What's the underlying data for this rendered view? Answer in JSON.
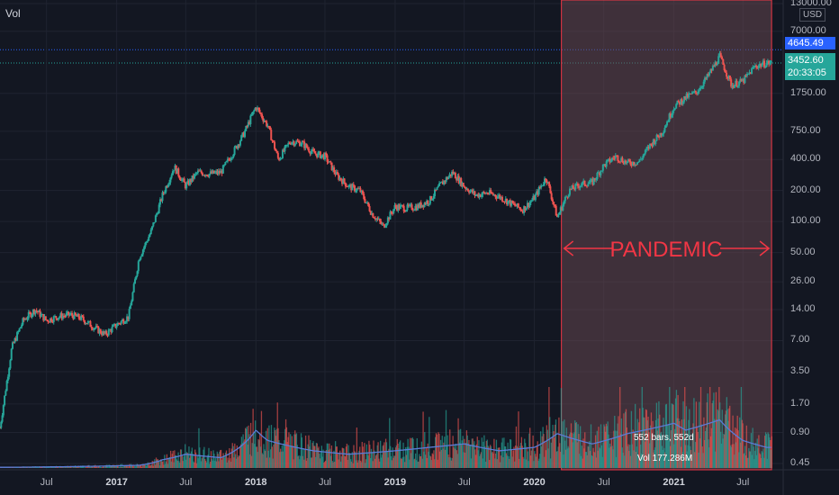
{
  "header": {
    "indicator_label": "Vol",
    "currency": "USD"
  },
  "price_tags": {
    "high_level": "4645.49",
    "last_price": "3452.60",
    "countdown": "20:33:05"
  },
  "annotation": {
    "text": "PANDEMIC",
    "bars_label": "552 bars, 552d",
    "volume_label": "Vol 177.286M"
  },
  "colors": {
    "up": "#26a69a",
    "down": "#ef5350",
    "volume_ma": "#5b7bd6",
    "highlight_border": "#f23645",
    "highlight_fill": "#6b4a52"
  },
  "chart_data": {
    "type": "candlestick",
    "scale": "log",
    "y_ticks": [
      "13000.00",
      "7000.00",
      "4645.49",
      "3452.60",
      "1750.00",
      "750.00",
      "400.00",
      "200.00",
      "100.00",
      "50.00",
      "26.00",
      "14.00",
      "7.00",
      "3.50",
      "1.70",
      "0.90",
      "0.45"
    ],
    "x_ticks": [
      {
        "label": "Jul",
        "year": false
      },
      {
        "label": "2017",
        "year": true
      },
      {
        "label": "Jul",
        "year": false
      },
      {
        "label": "2018",
        "year": true
      },
      {
        "label": "Jul",
        "year": false
      },
      {
        "label": "2019",
        "year": true
      },
      {
        "label": "Jul",
        "year": false
      },
      {
        "label": "2020",
        "year": true
      },
      {
        "label": "Jul",
        "year": false
      },
      {
        "label": "2021",
        "year": true
      },
      {
        "label": "Jul",
        "year": false
      }
    ],
    "price_path": [
      [
        "2016-03-01",
        1.0
      ],
      [
        "2016-04-01",
        6
      ],
      [
        "2016-05-01",
        11
      ],
      [
        "2016-06-01",
        14
      ],
      [
        "2016-07-01",
        11
      ],
      [
        "2016-08-01",
        12
      ],
      [
        "2016-09-01",
        12.5
      ],
      [
        "2016-10-01",
        11.5
      ],
      [
        "2016-11-01",
        9.5
      ],
      [
        "2016-12-01",
        8
      ],
      [
        "2017-01-01",
        10
      ],
      [
        "2017-02-01",
        12
      ],
      [
        "2017-03-01",
        45
      ],
      [
        "2017-04-01",
        80
      ],
      [
        "2017-05-01",
        180
      ],
      [
        "2017-06-01",
        340
      ],
      [
        "2017-07-01",
        220
      ],
      [
        "2017-08-01",
        300
      ],
      [
        "2017-09-01",
        290
      ],
      [
        "2017-10-01",
        300
      ],
      [
        "2017-11-01",
        460
      ],
      [
        "2017-12-01",
        720
      ],
      [
        "2018-01-01",
        1300
      ],
      [
        "2018-02-01",
        850
      ],
      [
        "2018-03-01",
        400
      ],
      [
        "2018-04-01",
        600
      ],
      [
        "2018-05-01",
        580
      ],
      [
        "2018-06-01",
        460
      ],
      [
        "2018-07-01",
        430
      ],
      [
        "2018-08-01",
        280
      ],
      [
        "2018-09-01",
        220
      ],
      [
        "2018-10-01",
        200
      ],
      [
        "2018-11-01",
        120
      ],
      [
        "2018-12-01",
        90
      ],
      [
        "2019-01-01",
        140
      ],
      [
        "2019-02-01",
        135
      ],
      [
        "2019-03-01",
        140
      ],
      [
        "2019-04-01",
        160
      ],
      [
        "2019-05-01",
        230
      ],
      [
        "2019-06-01",
        300
      ],
      [
        "2019-07-01",
        220
      ],
      [
        "2019-08-01",
        180
      ],
      [
        "2019-09-01",
        190
      ],
      [
        "2019-10-01",
        175
      ],
      [
        "2019-11-01",
        150
      ],
      [
        "2019-12-01",
        130
      ],
      [
        "2020-01-01",
        170
      ],
      [
        "2020-02-01",
        270
      ],
      [
        "2020-03-01",
        110
      ],
      [
        "2020-04-01",
        200
      ],
      [
        "2020-05-01",
        230
      ],
      [
        "2020-06-01",
        240
      ],
      [
        "2020-07-01",
        350
      ],
      [
        "2020-08-01",
        430
      ],
      [
        "2020-09-01",
        370
      ],
      [
        "2020-10-01",
        380
      ],
      [
        "2020-11-01",
        560
      ],
      [
        "2020-12-01",
        740
      ],
      [
        "2021-01-01",
        1300
      ],
      [
        "2021-02-01",
        1600
      ],
      [
        "2021-03-01",
        1800
      ],
      [
        "2021-04-01",
        2600
      ],
      [
        "2021-05-01",
        4000
      ],
      [
        "2021-06-01",
        2100
      ],
      [
        "2021-07-01",
        2300
      ],
      [
        "2021-08-01",
        3200
      ],
      [
        "2021-09-01",
        3450
      ]
    ],
    "volume_path": [
      [
        "2016-03-01",
        0.01
      ],
      [
        "2016-09-01",
        0.02
      ],
      [
        "2017-03-01",
        0.04
      ],
      [
        "2017-05-01",
        0.12
      ],
      [
        "2017-07-01",
        0.2
      ],
      [
        "2017-10-01",
        0.15
      ],
      [
        "2018-01-01",
        0.55
      ],
      [
        "2018-02-01",
        0.4
      ],
      [
        "2018-06-01",
        0.25
      ],
      [
        "2018-09-01",
        0.2
      ],
      [
        "2019-01-01",
        0.25
      ],
      [
        "2019-04-01",
        0.3
      ],
      [
        "2019-07-01",
        0.35
      ],
      [
        "2019-10-01",
        0.25
      ],
      [
        "2020-01-01",
        0.3
      ],
      [
        "2020-03-01",
        0.5
      ],
      [
        "2020-06-01",
        0.35
      ],
      [
        "2020-09-01",
        0.5
      ],
      [
        "2021-01-01",
        0.65
      ],
      [
        "2021-02-01",
        0.55
      ],
      [
        "2021-05-01",
        0.7
      ],
      [
        "2021-07-01",
        0.4
      ],
      [
        "2021-09-01",
        0.3
      ]
    ],
    "highlight_range": [
      "2020-03-12",
      "2021-09-14"
    ]
  }
}
